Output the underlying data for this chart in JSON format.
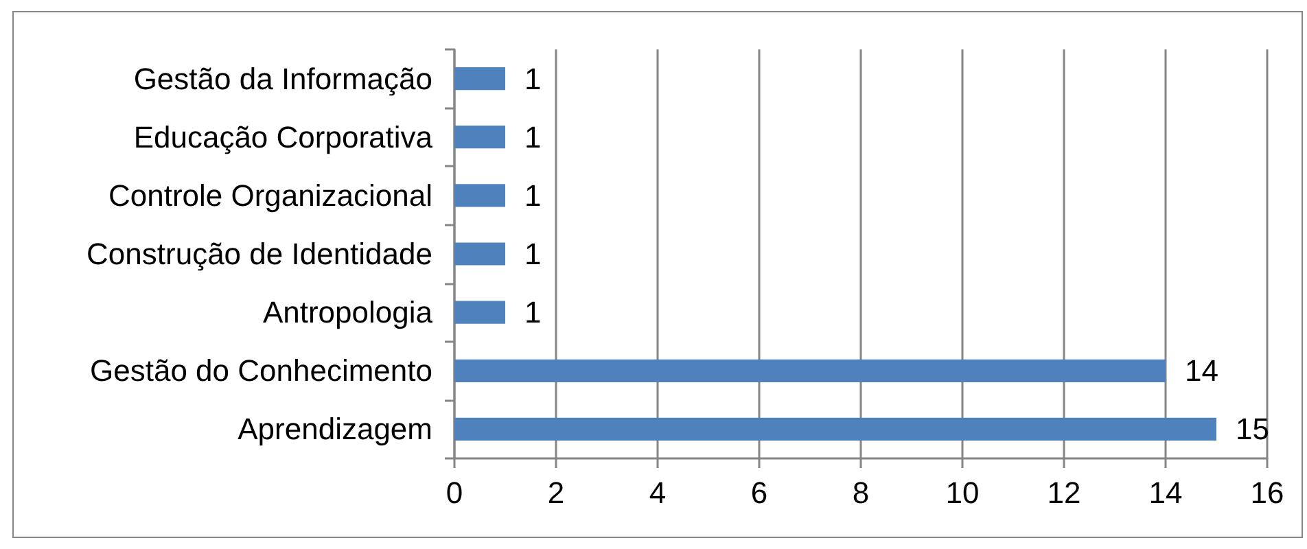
{
  "chart_data": {
    "type": "bar",
    "orientation": "horizontal",
    "categories": [
      "Gestão da Informação",
      "Educação Corporativa",
      "Controle Organizacional",
      "Construção de Identidade",
      "Antropologia",
      "Gestão do Conhecimento",
      "Aprendizagem"
    ],
    "values": [
      1,
      1,
      1,
      1,
      1,
      14,
      15
    ],
    "color": "#4f81bd",
    "xlim": [
      0,
      16
    ],
    "xticks": [
      0,
      2,
      4,
      6,
      8,
      10,
      12,
      14,
      16
    ],
    "grid": "x",
    "data_labels": true
  }
}
